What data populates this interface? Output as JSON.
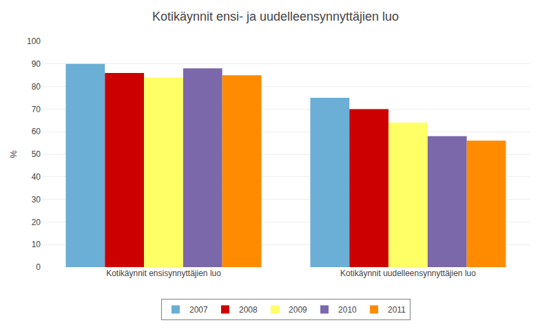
{
  "chart_data": {
    "type": "bar",
    "title": "Kotikäynnit ensi- ja uudelleensynnyttäjien luo",
    "ylabel": "%",
    "categories": [
      "Kotikäynnit ensisynnyttäjien luo",
      "Kotikäynnit uudelleensynnyttäjien luo"
    ],
    "series": [
      {
        "name": "2007",
        "color": "#6BAED6",
        "values": [
          90,
          75
        ]
      },
      {
        "name": "2008",
        "color": "#CC0000",
        "values": [
          86,
          70
        ]
      },
      {
        "name": "2009",
        "color": "#FFFF66",
        "values": [
          84,
          64
        ]
      },
      {
        "name": "2010",
        "color": "#7B68AA",
        "values": [
          88,
          58
        ]
      },
      {
        "name": "2011",
        "color": "#FF8C00",
        "values": [
          85,
          56
        ]
      }
    ],
    "ylim": [
      0,
      100
    ],
    "yticks": [
      0,
      10,
      20,
      30,
      40,
      50,
      60,
      70,
      80,
      90,
      100
    ],
    "grid": true,
    "legend": "bottom"
  }
}
